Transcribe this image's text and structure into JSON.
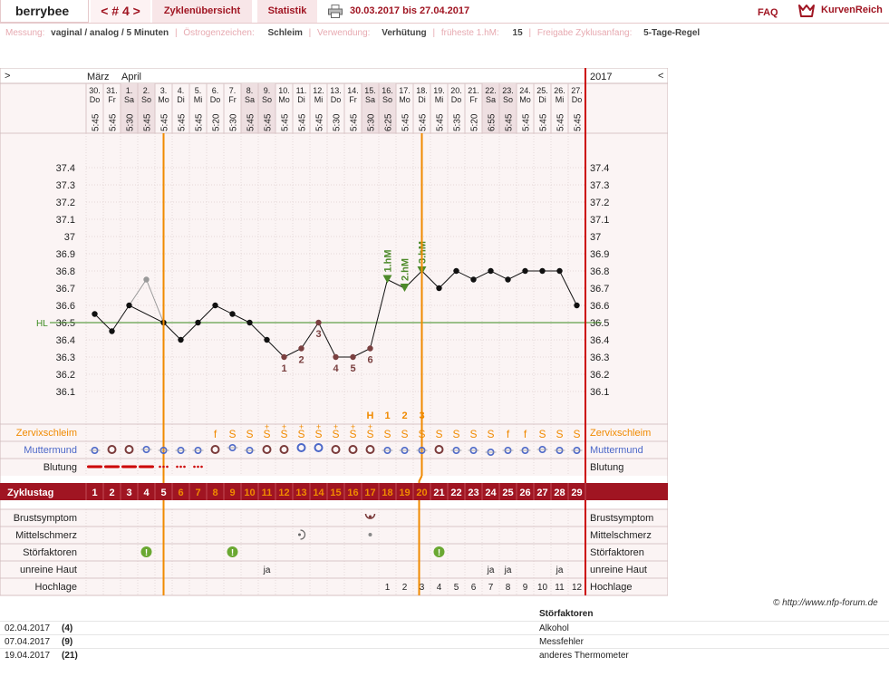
{
  "app": {
    "brand": "berrybee",
    "cycle_nav": "< # 4 >",
    "tab_overview": "Zyklenübersicht",
    "tab_stats": "Statistik",
    "date_range": "30.03.2017 bis 27.04.2017",
    "faq": "FAQ",
    "logo_text": "KurvenReich"
  },
  "settings": {
    "measure_label": "Messung:",
    "measure_value": "vaginal / analog / 5 Minuten",
    "sign_label": "Östrogenzeichen:",
    "sign_value": "Schleim",
    "use_label": "Verwendung:",
    "use_value": "Verhütung",
    "hm_label": "früheste 1.hM:",
    "hm_value": "15",
    "release_label": "Freigabe Zyklusanfang:",
    "release_value": "5-Tage-Regel"
  },
  "chart_data": {
    "type": "line",
    "nav_left": ">",
    "nav_right": "<",
    "year": "2017",
    "months": [
      {
        "label": "März",
        "index": 0
      },
      {
        "label": "April",
        "index": 2
      }
    ],
    "dates": [
      "30.",
      "31.",
      "1.",
      "2.",
      "3.",
      "4.",
      "5.",
      "6.",
      "7.",
      "8.",
      "9.",
      "10.",
      "11.",
      "12.",
      "13.",
      "14.",
      "15.",
      "16.",
      "17.",
      "18.",
      "19.",
      "20.",
      "21.",
      "22.",
      "23.",
      "24.",
      "25.",
      "26.",
      "27."
    ],
    "weekdays": [
      "Do",
      "Fr",
      "Sa",
      "So",
      "Mo",
      "Di",
      "Mi",
      "Do",
      "Fr",
      "Sa",
      "So",
      "Mo",
      "Di",
      "Mi",
      "Do",
      "Fr",
      "Sa",
      "So",
      "Mo",
      "Di",
      "Mi",
      "Do",
      "Fr",
      "Sa",
      "So",
      "Mo",
      "Di",
      "Mi",
      "Do"
    ],
    "weekend_indices": [
      2,
      3,
      9,
      10,
      16,
      17,
      23,
      24
    ],
    "times": [
      "5:45",
      "5:45",
      "5:30",
      "5:45",
      "5:45",
      "5:45",
      "5:45",
      "5:20",
      "5:30",
      "5:45",
      "5:45",
      "5:45",
      "5:45",
      "5:45",
      "5:30",
      "5:45",
      "5:30",
      "6:25",
      "5:45",
      "5:45",
      "5:45",
      "5:35",
      "5:20",
      "6:55",
      "5:45",
      "5:45",
      "5:45",
      "5:45",
      "5:45"
    ],
    "y_ticks": [
      "37.4",
      "37.3",
      "37.2",
      "37.1",
      "37",
      "36.9",
      "36.8",
      "36.7",
      "36.6",
      "36.5",
      "36.4",
      "36.3",
      "36.2",
      "36.1"
    ],
    "ylim": [
      36.0,
      37.5
    ],
    "temperatures": [
      36.55,
      36.45,
      36.6,
      36.75,
      36.5,
      36.4,
      36.5,
      36.6,
      36.55,
      36.5,
      36.4,
      36.3,
      36.35,
      36.5,
      36.3,
      36.3,
      36.35,
      36.75,
      36.7,
      36.8,
      36.7,
      36.8,
      36.75,
      36.8,
      36.75,
      36.8,
      36.8,
      36.8,
      36.6
    ],
    "excluded_indices": [
      3
    ],
    "low_labels": [
      {
        "index": 11,
        "label": "1"
      },
      {
        "index": 12,
        "label": "2"
      },
      {
        "index": 13,
        "label": "3"
      },
      {
        "index": 14,
        "label": "4"
      },
      {
        "index": 15,
        "label": "5"
      },
      {
        "index": 16,
        "label": "6"
      }
    ],
    "high_labels": [
      {
        "index": 17,
        "label": "1.hM"
      },
      {
        "index": 18,
        "label": "2.hM"
      },
      {
        "index": 19,
        "label": "3.hM"
      }
    ],
    "hl_label": "HL",
    "hl_value": 36.5,
    "peak_marks": [
      {
        "index": 16,
        "label": "H"
      },
      {
        "index": 17,
        "label": "1"
      },
      {
        "index": 18,
        "label": "2"
      },
      {
        "index": 19,
        "label": "3"
      }
    ],
    "mucus_label": "Zervixschleim",
    "mucus": [
      "",
      "",
      "",
      "",
      "",
      "",
      "",
      "f",
      "S",
      "S",
      "S+",
      "S+",
      "S+",
      "S+",
      "S+",
      "S+",
      "S+",
      "S",
      "S",
      "S",
      "S",
      "S",
      "S",
      "S",
      "f",
      "f",
      "S",
      "S",
      "S"
    ],
    "cervix_label": "Muttermund",
    "cervix": [
      "c-low",
      "o-mid",
      "o-mid",
      "c-mid",
      "c-low",
      "c-low",
      "c-low",
      "o-mid-red",
      "c-high",
      "c-low",
      "o-mid",
      "o-mid",
      "o-high",
      "o-high",
      "o-mid-red",
      "o-mid-red",
      "o-mid-red",
      "c-low",
      "c-low",
      "c-low",
      "o-mid-red",
      "c-low",
      "c-low",
      "c-low2",
      "c-low",
      "c-low",
      "c-mid",
      "c-low",
      "c-low"
    ],
    "bleeding_label": "Blutung",
    "bleeding": [
      "line",
      "line",
      "line",
      "line",
      "dots",
      "dots",
      "dots",
      "",
      "",
      "",
      "",
      "",
      "",
      "",
      "",
      "",
      "",
      "",
      "",
      "",
      "",
      "",
      "",
      "",
      "",
      "",
      "",
      "",
      ""
    ],
    "cycle_label": "Zyklustag",
    "cycle_days": [
      "1",
      "2",
      "3",
      "4",
      "5",
      "6",
      "7",
      "8",
      "9",
      "10",
      "11",
      "12",
      "13",
      "14",
      "15",
      "16",
      "17",
      "18",
      "19",
      "20",
      "21",
      "22",
      "23",
      "24",
      "25",
      "26",
      "27",
      "28",
      "29"
    ],
    "breast_label": "Brustsymptom",
    "breast_indices": [
      16
    ],
    "midpain_label": "Mittelschmerz",
    "midpain": [
      {
        "index": 12,
        "kind": "small-swirl"
      },
      {
        "index": 16,
        "kind": "dot"
      }
    ],
    "disturb_label": "Störfaktoren",
    "disturb_indices": [
      3,
      8,
      20
    ],
    "skin_label": "unreine Haut",
    "skin": [
      "",
      "",
      "",
      "",
      "",
      "",
      "",
      "",
      "",
      "",
      "ja",
      "",
      "",
      "",
      "",
      "",
      "",
      "",
      "",
      "",
      "",
      "",
      "",
      "ja",
      "ja",
      "",
      "",
      "ja",
      ""
    ],
    "hochlage_label": "Hochlage",
    "hochlage": [
      "",
      "",
      "",
      "",
      "",
      "",
      "",
      "",
      "",
      "",
      "",
      "",
      "",
      "",
      "",
      "",
      "",
      "1",
      "2",
      "3",
      "4",
      "5",
      "6",
      "7",
      "8",
      "9",
      "10",
      "11",
      "12"
    ],
    "orange_line_indices": [
      4.5,
      19.5
    ],
    "end_line_index": 29
  },
  "credit": "© http://www.nfp-forum.de",
  "stoerfaktoren": {
    "title": "Störfaktoren",
    "rows": [
      {
        "date": "02.04.2017",
        "day": "(4)",
        "text": "Alkohol"
      },
      {
        "date": "07.04.2017",
        "day": "(9)",
        "text": "Messfehler"
      },
      {
        "date": "19.04.2017",
        "day": "(21)",
        "text": "anderes Thermometer"
      }
    ]
  },
  "colors": {
    "accent": "#a01522",
    "orange": "#f08a00",
    "chart_bg": "#fbf4f4",
    "weekend_bg": "#eedfe1",
    "hl_line": "#3a8a1e",
    "temp_point": "#111111",
    "low_label": "#7a4040",
    "high_label": "#4d8a2a",
    "cervix_blue": "#4b67c8",
    "cervix_red": "#7a3a3a"
  }
}
